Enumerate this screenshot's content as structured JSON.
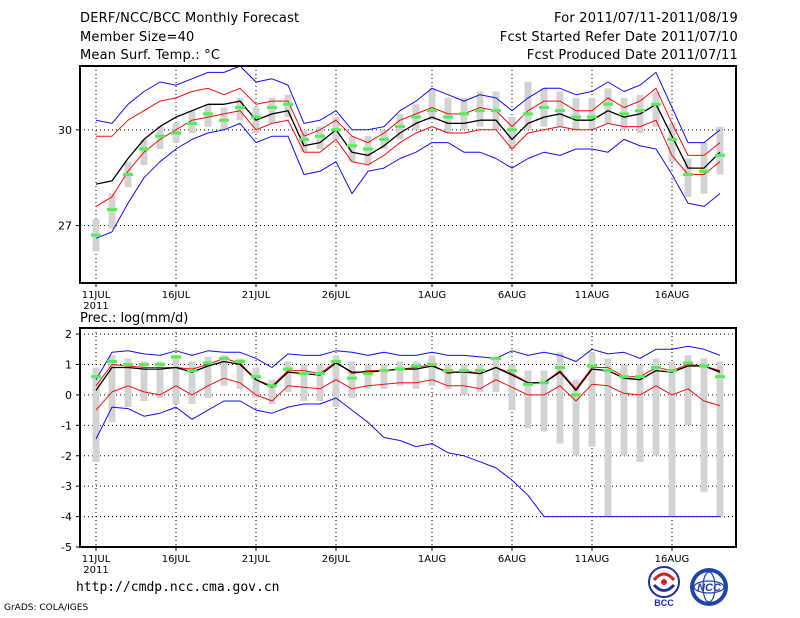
{
  "header": {
    "title": "DERF/NCC/BCC Monthly Forecast",
    "member_size": "Member Size=40",
    "variable": "Mean Surf. Temp.: °C",
    "forecast_period": "For 2011/07/11-2011/08/19",
    "started_refer": "Fcst Started Refer Date 2011/07/10",
    "produced": "Fcst Produced Date 2011/07/11"
  },
  "footer": {
    "url": "http://cmdp.ncc.cma.gov.cn",
    "grads_credit": "GrADS: COLA/IGES",
    "logo_left": "BCC",
    "logo_right": "NCC"
  },
  "colors": {
    "bar": "#d3d3d3",
    "green": "#55ee55",
    "red": "#ee1111",
    "blue": "#1111ee",
    "black": "#000000"
  },
  "chart_data": [
    {
      "type": "line",
      "title": "Mean Surf. Temp.: °C",
      "x_tick_labels": [
        "11JUL",
        "16JUL",
        "21JUL",
        "26JUL",
        "1AUG",
        "6AUG",
        "11AUG",
        "16AUG"
      ],
      "x_tick_days": [
        0,
        5,
        10,
        15,
        21,
        26,
        31,
        36
      ],
      "x_sublabel": "2011",
      "xlim": [
        -1,
        40
      ],
      "ylim": [
        25.2,
        32.0
      ],
      "y_ticks": [
        27,
        30
      ],
      "grid": true,
      "series": {
        "max_blue": [
          30.3,
          30.2,
          30.8,
          31.2,
          31.5,
          31.4,
          31.6,
          31.8,
          31.8,
          32.0,
          31.5,
          31.6,
          31.4,
          30.2,
          30.3,
          30.6,
          30.0,
          30.0,
          30.1,
          30.6,
          30.9,
          31.3,
          31.1,
          30.9,
          31.1,
          31.0,
          30.6,
          31.0,
          31.3,
          31.3,
          31.1,
          31.2,
          31.5,
          31.2,
          31.4,
          31.8,
          30.7,
          29.6,
          29.6,
          30.0
        ],
        "pct_red_upper": [
          29.8,
          29.8,
          30.3,
          30.6,
          30.9,
          31.0,
          31.2,
          31.3,
          31.1,
          31.3,
          30.8,
          30.9,
          30.9,
          29.8,
          30.0,
          30.3,
          29.8,
          29.6,
          29.9,
          30.3,
          30.5,
          30.7,
          30.5,
          30.5,
          30.7,
          30.6,
          30.1,
          30.6,
          30.9,
          30.9,
          30.6,
          30.6,
          31.0,
          30.7,
          30.9,
          31.3,
          30.2,
          29.2,
          29.2,
          29.6
        ],
        "ensemble_mean": [
          28.3,
          28.4,
          29.1,
          29.7,
          30.1,
          30.4,
          30.6,
          30.8,
          30.8,
          30.9,
          30.3,
          30.5,
          30.6,
          29.5,
          29.6,
          30.0,
          29.3,
          29.2,
          29.5,
          29.9,
          30.2,
          30.4,
          30.2,
          30.2,
          30.3,
          30.3,
          29.7,
          30.2,
          30.4,
          30.5,
          30.3,
          30.3,
          30.6,
          30.4,
          30.5,
          30.8,
          29.8,
          28.8,
          28.8,
          29.3
        ],
        "pct_red_lower": [
          27.6,
          27.9,
          28.7,
          29.3,
          29.7,
          30.0,
          30.3,
          30.4,
          30.5,
          30.6,
          30.0,
          30.2,
          30.3,
          29.3,
          29.3,
          29.7,
          29.0,
          28.9,
          29.2,
          29.6,
          29.9,
          30.1,
          29.9,
          29.9,
          30.0,
          30.0,
          29.4,
          29.9,
          30.0,
          30.1,
          30.0,
          30.0,
          30.2,
          30.1,
          30.1,
          30.3,
          29.2,
          28.6,
          28.6,
          29.0
        ],
        "min_blue": [
          26.6,
          26.8,
          27.7,
          28.5,
          29.0,
          29.4,
          29.7,
          29.9,
          30.0,
          30.2,
          29.6,
          29.8,
          29.8,
          28.6,
          28.7,
          29.0,
          28.0,
          28.7,
          28.8,
          29.1,
          29.3,
          29.6,
          29.6,
          29.3,
          29.3,
          29.1,
          28.8,
          29.1,
          29.3,
          29.2,
          29.4,
          29.4,
          29.3,
          29.7,
          29.5,
          29.4,
          28.6,
          27.7,
          27.6,
          28.0
        ],
        "green_marker": [
          26.7,
          27.5,
          28.6,
          29.4,
          29.8,
          29.9,
          30.2,
          30.5,
          30.3,
          30.7,
          30.4,
          30.7,
          30.8,
          29.7,
          29.8,
          30.0,
          29.5,
          29.4,
          29.7,
          30.1,
          30.4,
          30.6,
          30.4,
          30.5,
          30.6,
          30.6,
          30.0,
          30.5,
          30.7,
          30.6,
          30.4,
          30.4,
          30.8,
          30.5,
          30.6,
          30.8,
          29.7,
          28.6,
          28.7,
          29.2
        ],
        "bar_top": [
          27.2,
          28.0,
          29.0,
          29.7,
          30.1,
          30.2,
          30.6,
          30.8,
          30.7,
          31.0,
          30.7,
          31.0,
          31.1,
          30.0,
          30.1,
          30.4,
          29.8,
          29.8,
          30.0,
          30.5,
          30.8,
          31.3,
          31.0,
          31.0,
          31.2,
          31.2,
          30.4,
          31.5,
          31.3,
          31.2,
          31.0,
          31.0,
          31.3,
          31.0,
          31.1,
          31.2,
          30.2,
          29.1,
          29.6,
          30.1
        ],
        "bar_bottom": [
          26.2,
          26.9,
          28.2,
          28.9,
          29.4,
          29.6,
          29.9,
          30.1,
          30.0,
          30.3,
          29.9,
          30.2,
          30.4,
          29.3,
          29.4,
          29.7,
          29.0,
          28.9,
          29.4,
          29.7,
          30.0,
          30.3,
          29.9,
          30.0,
          30.1,
          30.0,
          29.4,
          30.0,
          30.1,
          30.1,
          30.0,
          30.0,
          30.2,
          30.0,
          29.9,
          30.1,
          29.0,
          27.9,
          28.0,
          28.6
        ]
      }
    },
    {
      "type": "line",
      "title": "Prec.: log(mm/d)",
      "x_tick_labels": [
        "11JUL",
        "16JUL",
        "21JUL",
        "26JUL",
        "1AUG",
        "6AUG",
        "11AUG",
        "16AUG"
      ],
      "x_tick_days": [
        0,
        5,
        10,
        15,
        21,
        26,
        31,
        36
      ],
      "x_sublabel": "2011",
      "xlim": [
        -1,
        40
      ],
      "ylim": [
        -5,
        2.2
      ],
      "y_ticks": [
        -5,
        -4,
        -3,
        -2,
        -1,
        0,
        1,
        2
      ],
      "grid": true,
      "series": {
        "max_blue": [
          0.5,
          1.4,
          1.45,
          1.35,
          1.3,
          1.45,
          1.3,
          1.45,
          1.4,
          1.4,
          1.2,
          0.9,
          1.35,
          1.3,
          1.3,
          1.45,
          1.4,
          1.3,
          1.4,
          1.3,
          1.3,
          1.4,
          1.3,
          1.3,
          1.25,
          1.2,
          1.45,
          1.3,
          1.4,
          1.3,
          1.1,
          1.5,
          1.35,
          1.4,
          1.2,
          1.5,
          1.5,
          1.6,
          1.5,
          1.3
        ],
        "pct_red_upper": [
          0.3,
          1.0,
          0.95,
          0.9,
          0.9,
          0.9,
          0.85,
          1.0,
          1.2,
          1.05,
          0.5,
          0.3,
          0.8,
          0.8,
          0.7,
          1.1,
          0.7,
          0.8,
          0.8,
          0.85,
          0.9,
          1.0,
          0.7,
          0.8,
          0.7,
          0.9,
          0.7,
          0.4,
          0.4,
          0.8,
          0.2,
          0.9,
          0.9,
          0.6,
          0.6,
          0.9,
          0.8,
          1.0,
          0.95,
          0.8
        ],
        "ensemble_mean": [
          0.15,
          0.9,
          0.9,
          0.85,
          0.85,
          0.9,
          0.75,
          0.95,
          1.1,
          1.0,
          0.5,
          0.25,
          0.75,
          0.7,
          0.65,
          1.05,
          0.75,
          0.75,
          0.8,
          0.85,
          0.85,
          0.95,
          0.75,
          0.75,
          0.7,
          0.9,
          0.65,
          0.4,
          0.4,
          0.75,
          0.15,
          0.85,
          0.8,
          0.55,
          0.5,
          0.8,
          0.75,
          0.95,
          0.95,
          0.75
        ],
        "pct_red_lower": [
          -0.5,
          0.1,
          0.3,
          0.1,
          0.0,
          0.3,
          0.0,
          0.3,
          0.55,
          0.4,
          0.0,
          -0.2,
          0.3,
          0.25,
          0.2,
          0.5,
          0.2,
          0.3,
          0.35,
          0.4,
          0.4,
          0.5,
          0.3,
          0.3,
          0.2,
          0.5,
          0.25,
          0.0,
          0.0,
          0.3,
          -0.2,
          0.35,
          0.3,
          0.05,
          0.0,
          0.3,
          0.0,
          0.2,
          -0.2,
          -0.35
        ],
        "min_blue": [
          -1.45,
          -0.4,
          -0.45,
          -0.7,
          -0.6,
          -0.4,
          -0.8,
          -0.5,
          -0.2,
          -0.2,
          -0.5,
          -0.6,
          -0.4,
          -0.3,
          -0.3,
          -0.1,
          -0.5,
          -0.9,
          -1.4,
          -1.5,
          -1.7,
          -1.6,
          -1.9,
          -2.0,
          -2.2,
          -2.4,
          -2.8,
          -3.3,
          -4.0,
          -4.0,
          -4.0,
          -4.0,
          -4.0,
          -4.0,
          -4.0,
          -4.0,
          -4.0,
          -4.0,
          -4.0,
          -4.0
        ],
        "green_marker": [
          0.6,
          1.1,
          1.0,
          1.0,
          1.0,
          1.25,
          0.8,
          1.05,
          1.2,
          1.1,
          0.6,
          0.3,
          0.85,
          0.7,
          0.7,
          1.1,
          0.55,
          0.7,
          0.8,
          0.85,
          0.95,
          1.0,
          0.8,
          0.8,
          0.8,
          1.2,
          0.8,
          0.35,
          0.4,
          0.9,
          0.0,
          0.95,
          0.8,
          0.6,
          0.6,
          0.9,
          0.8,
          1.05,
          0.95,
          0.6
        ],
        "bar_top": [
          0.9,
          1.3,
          1.2,
          1.1,
          1.1,
          1.3,
          1.1,
          1.25,
          1.3,
          1.2,
          0.9,
          0.5,
          1.1,
          1.0,
          1.0,
          1.3,
          1.1,
          1.0,
          1.0,
          1.1,
          1.1,
          1.3,
          1.0,
          1.0,
          1.0,
          1.2,
          1.0,
          0.8,
          0.8,
          1.4,
          0.5,
          1.4,
          1.2,
          1.0,
          1.0,
          1.2,
          1.1,
          1.3,
          1.2,
          1.1
        ],
        "bar_bottom": [
          -2.2,
          -0.9,
          -0.4,
          -0.2,
          -0.1,
          -0.3,
          -0.3,
          -0.1,
          0.3,
          0.2,
          -0.1,
          -0.3,
          0.1,
          -0.2,
          -0.2,
          -0.4,
          -0.1,
          0.2,
          0.2,
          0.3,
          0.2,
          0.3,
          0.2,
          0.0,
          0.1,
          0.1,
          -0.5,
          -1.1,
          -1.2,
          -1.6,
          -2.0,
          -1.7,
          -4.0,
          -2.0,
          -2.2,
          -2.0,
          -4.0,
          -1.0,
          -3.2,
          -4.0
        ]
      }
    }
  ]
}
